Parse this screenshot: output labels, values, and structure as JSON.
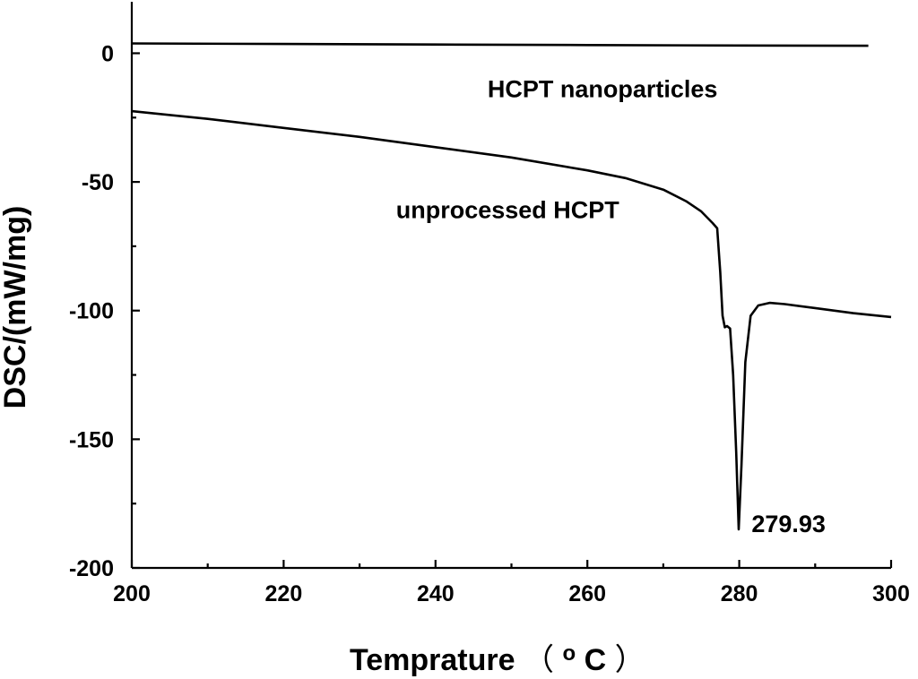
{
  "chart_data": {
    "type": "line",
    "xlabel": "Temprature",
    "xlabel_unit_open": "（",
    "xlabel_unit_sup": "o",
    "xlabel_unit_main": "C",
    "xlabel_unit_close": "）",
    "ylabel": "DSC/(mW/mg)",
    "xlim": [
      200,
      300
    ],
    "ylim": [
      -200,
      20
    ],
    "x_ticks": [
      200,
      220,
      240,
      260,
      280,
      300
    ],
    "y_ticks": [
      0,
      -50,
      -100,
      -150,
      -200
    ],
    "grid": false,
    "series": [
      {
        "name": "HCPT nanoparticles",
        "x": [
          200,
          220,
          240,
          260,
          280,
          297
        ],
        "y": [
          3.8,
          3.6,
          3.4,
          3.2,
          3.0,
          2.9
        ]
      },
      {
        "name": "unprocessed HCPT",
        "x": [
          200,
          210,
          220,
          230,
          240,
          250,
          260,
          265,
          270,
          273,
          275,
          276.5,
          277.1,
          277.5,
          277.8,
          278.1,
          278.4,
          278.8,
          279.2,
          279.6,
          279.93,
          280.3,
          280.8,
          281.5,
          282.5,
          284,
          286,
          290,
          295,
          300
        ],
        "y": [
          -22.5,
          -25.5,
          -29,
          -32.5,
          -36.5,
          -40.5,
          -45.5,
          -48.5,
          -53,
          -57.5,
          -61.5,
          -66,
          -68,
          -85,
          -102,
          -106.5,
          -106,
          -107,
          -125,
          -155,
          -185,
          -160,
          -120,
          -102,
          -98,
          -97,
          -97.5,
          -99,
          -101,
          -102.5
        ]
      }
    ],
    "annotations": [
      {
        "text": "HCPT nanoparticles",
        "x": 262,
        "y": -17
      },
      {
        "text": "unprocessed HCPT",
        "x": 249.5,
        "y": -64
      },
      {
        "text": "279.93",
        "x": 286.5,
        "y": -186
      }
    ]
  }
}
